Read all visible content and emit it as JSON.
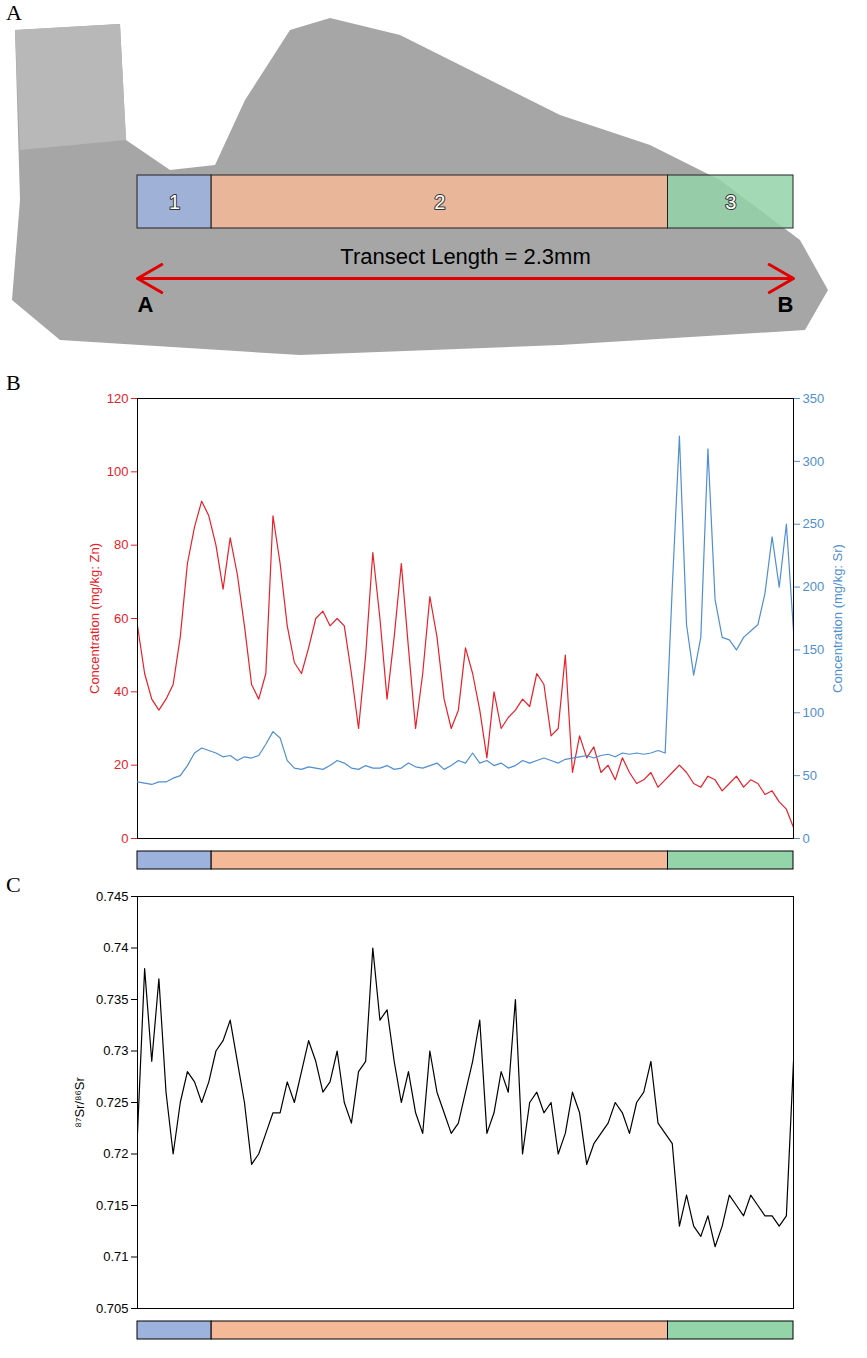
{
  "chart_data": [
    {
      "type": "diagram",
      "panel": "A",
      "xlim": [
        0,
        2.3
      ],
      "zones": [
        {
          "label": "1",
          "start": 0,
          "end": 0.26,
          "color": "#9db3de"
        },
        {
          "label": "2",
          "start": 0.26,
          "end": 1.86,
          "color": "#f4b996"
        },
        {
          "label": "3",
          "start": 1.86,
          "end": 2.3,
          "color": "#93d4a8"
        }
      ],
      "transect": {
        "label": "Transect Length = 2.3mm",
        "start_label": "A",
        "end_label": "B"
      }
    },
    {
      "type": "line",
      "panel": "B",
      "y_label": "Concentration (mg/kg: Zn)",
      "y2_label": "Concentration (mg/kg: Sr)",
      "xlim": [
        0,
        2.3
      ],
      "ylim": [
        0,
        120
      ],
      "yticks": [
        0,
        20,
        40,
        60,
        80,
        100,
        120
      ],
      "y2lim": [
        0,
        350
      ],
      "y2ticks": [
        0,
        50,
        100,
        150,
        200,
        250,
        300,
        350
      ],
      "grid": false,
      "tick_labels": "y",
      "x": [
        0,
        0.025,
        0.05,
        0.075,
        0.1,
        0.125,
        0.15,
        0.175,
        0.2,
        0.225,
        0.25,
        0.275,
        0.3,
        0.325,
        0.35,
        0.375,
        0.4,
        0.425,
        0.45,
        0.475,
        0.5,
        0.525,
        0.55,
        0.575,
        0.6,
        0.625,
        0.65,
        0.675,
        0.7,
        0.725,
        0.75,
        0.775,
        0.8,
        0.825,
        0.85,
        0.875,
        0.9,
        0.925,
        0.95,
        0.975,
        1,
        1.025,
        1.05,
        1.075,
        1.1,
        1.125,
        1.15,
        1.175,
        1.2,
        1.225,
        1.25,
        1.275,
        1.3,
        1.325,
        1.35,
        1.375,
        1.4,
        1.425,
        1.45,
        1.475,
        1.5,
        1.525,
        1.55,
        1.575,
        1.6,
        1.625,
        1.65,
        1.675,
        1.7,
        1.725,
        1.75,
        1.775,
        1.8,
        1.825,
        1.85,
        1.875,
        1.9,
        1.925,
        1.95,
        1.975,
        2,
        2.025,
        2.05,
        2.075,
        2.1,
        2.125,
        2.15,
        2.175,
        2.2,
        2.225,
        2.25,
        2.275,
        2.3
      ],
      "series": [
        {
          "axis": "y",
          "color": "#e8202a",
          "values": [
            58,
            45,
            38,
            35,
            38,
            42,
            55,
            75,
            85,
            92,
            88,
            80,
            68,
            82,
            72,
            58,
            42,
            38,
            45,
            88,
            75,
            58,
            48,
            45,
            52,
            60,
            62,
            58,
            60,
            58,
            45,
            30,
            50,
            78,
            60,
            38,
            55,
            75,
            52,
            30,
            45,
            66,
            55,
            38,
            30,
            35,
            52,
            45,
            35,
            22,
            40,
            30,
            33,
            35,
            38,
            36,
            45,
            42,
            28,
            30,
            50,
            18,
            28,
            22,
            25,
            18,
            20,
            16,
            22,
            18,
            15,
            16,
            18,
            14,
            16,
            18,
            20,
            18,
            15,
            14,
            17,
            16,
            13,
            15,
            17,
            14,
            16,
            15,
            12,
            13,
            10,
            8,
            3
          ]
        },
        {
          "axis": "y2",
          "color": "#4f8fd0",
          "values": [
            45,
            44,
            43,
            45,
            45,
            48,
            50,
            58,
            68,
            72,
            70,
            68,
            65,
            66,
            62,
            65,
            64,
            66,
            75,
            85,
            80,
            62,
            56,
            55,
            57,
            56,
            55,
            58,
            62,
            60,
            56,
            55,
            58,
            56,
            56,
            58,
            55,
            56,
            60,
            57,
            56,
            58,
            60,
            55,
            58,
            62,
            60,
            68,
            60,
            62,
            58,
            60,
            56,
            58,
            62,
            60,
            62,
            64,
            62,
            60,
            63,
            64,
            65,
            66,
            64,
            66,
            67,
            65,
            68,
            67,
            68,
            67,
            68,
            70,
            68,
            200,
            320,
            170,
            130,
            160,
            310,
            190,
            160,
            158,
            150,
            160,
            165,
            170,
            195,
            240,
            200,
            250,
            165
          ]
        }
      ]
    },
    {
      "type": "line",
      "panel": "C",
      "y_label": "⁸⁷Sr/⁸⁶Sr",
      "xlim": [
        0,
        2.3
      ],
      "ylim": [
        0.705,
        0.745
      ],
      "yticks": [
        0.705,
        0.71,
        0.715,
        0.72,
        0.725,
        0.73,
        0.735,
        0.74,
        0.745
      ],
      "grid": false,
      "tick_labels": "y",
      "x": [
        0,
        0.025,
        0.05,
        0.075,
        0.1,
        0.125,
        0.15,
        0.175,
        0.2,
        0.225,
        0.25,
        0.275,
        0.3,
        0.325,
        0.35,
        0.375,
        0.4,
        0.425,
        0.45,
        0.475,
        0.5,
        0.525,
        0.55,
        0.575,
        0.6,
        0.625,
        0.65,
        0.675,
        0.7,
        0.725,
        0.75,
        0.775,
        0.8,
        0.825,
        0.85,
        0.875,
        0.9,
        0.925,
        0.95,
        0.975,
        1,
        1.025,
        1.05,
        1.075,
        1.1,
        1.125,
        1.15,
        1.175,
        1.2,
        1.225,
        1.25,
        1.275,
        1.3,
        1.325,
        1.35,
        1.375,
        1.4,
        1.425,
        1.45,
        1.475,
        1.5,
        1.525,
        1.55,
        1.575,
        1.6,
        1.625,
        1.65,
        1.675,
        1.7,
        1.725,
        1.75,
        1.775,
        1.8,
        1.825,
        1.85,
        1.875,
        1.9,
        1.925,
        1.95,
        1.975,
        2,
        2.025,
        2.05,
        2.075,
        2.1,
        2.125,
        2.15,
        2.175,
        2.2,
        2.225,
        2.25,
        2.275,
        2.3
      ],
      "series": [
        {
          "color": "#000000",
          "values": [
            0.722,
            0.738,
            0.729,
            0.737,
            0.726,
            0.72,
            0.725,
            0.728,
            0.727,
            0.725,
            0.727,
            0.73,
            0.731,
            0.733,
            0.729,
            0.725,
            0.719,
            0.72,
            0.722,
            0.724,
            0.724,
            0.727,
            0.725,
            0.728,
            0.731,
            0.729,
            0.726,
            0.727,
            0.73,
            0.725,
            0.723,
            0.728,
            0.729,
            0.74,
            0.733,
            0.734,
            0.729,
            0.725,
            0.728,
            0.724,
            0.722,
            0.73,
            0.726,
            0.724,
            0.722,
            0.723,
            0.726,
            0.729,
            0.733,
            0.722,
            0.724,
            0.728,
            0.726,
            0.735,
            0.72,
            0.725,
            0.726,
            0.724,
            0.725,
            0.72,
            0.722,
            0.726,
            0.724,
            0.719,
            0.721,
            0.722,
            0.723,
            0.725,
            0.724,
            0.722,
            0.725,
            0.726,
            0.729,
            0.723,
            0.722,
            0.721,
            0.713,
            0.716,
            0.713,
            0.712,
            0.714,
            0.711,
            0.713,
            0.716,
            0.715,
            0.714,
            0.716,
            0.715,
            0.714,
            0.714,
            0.713,
            0.714,
            0.729
          ]
        }
      ]
    }
  ]
}
